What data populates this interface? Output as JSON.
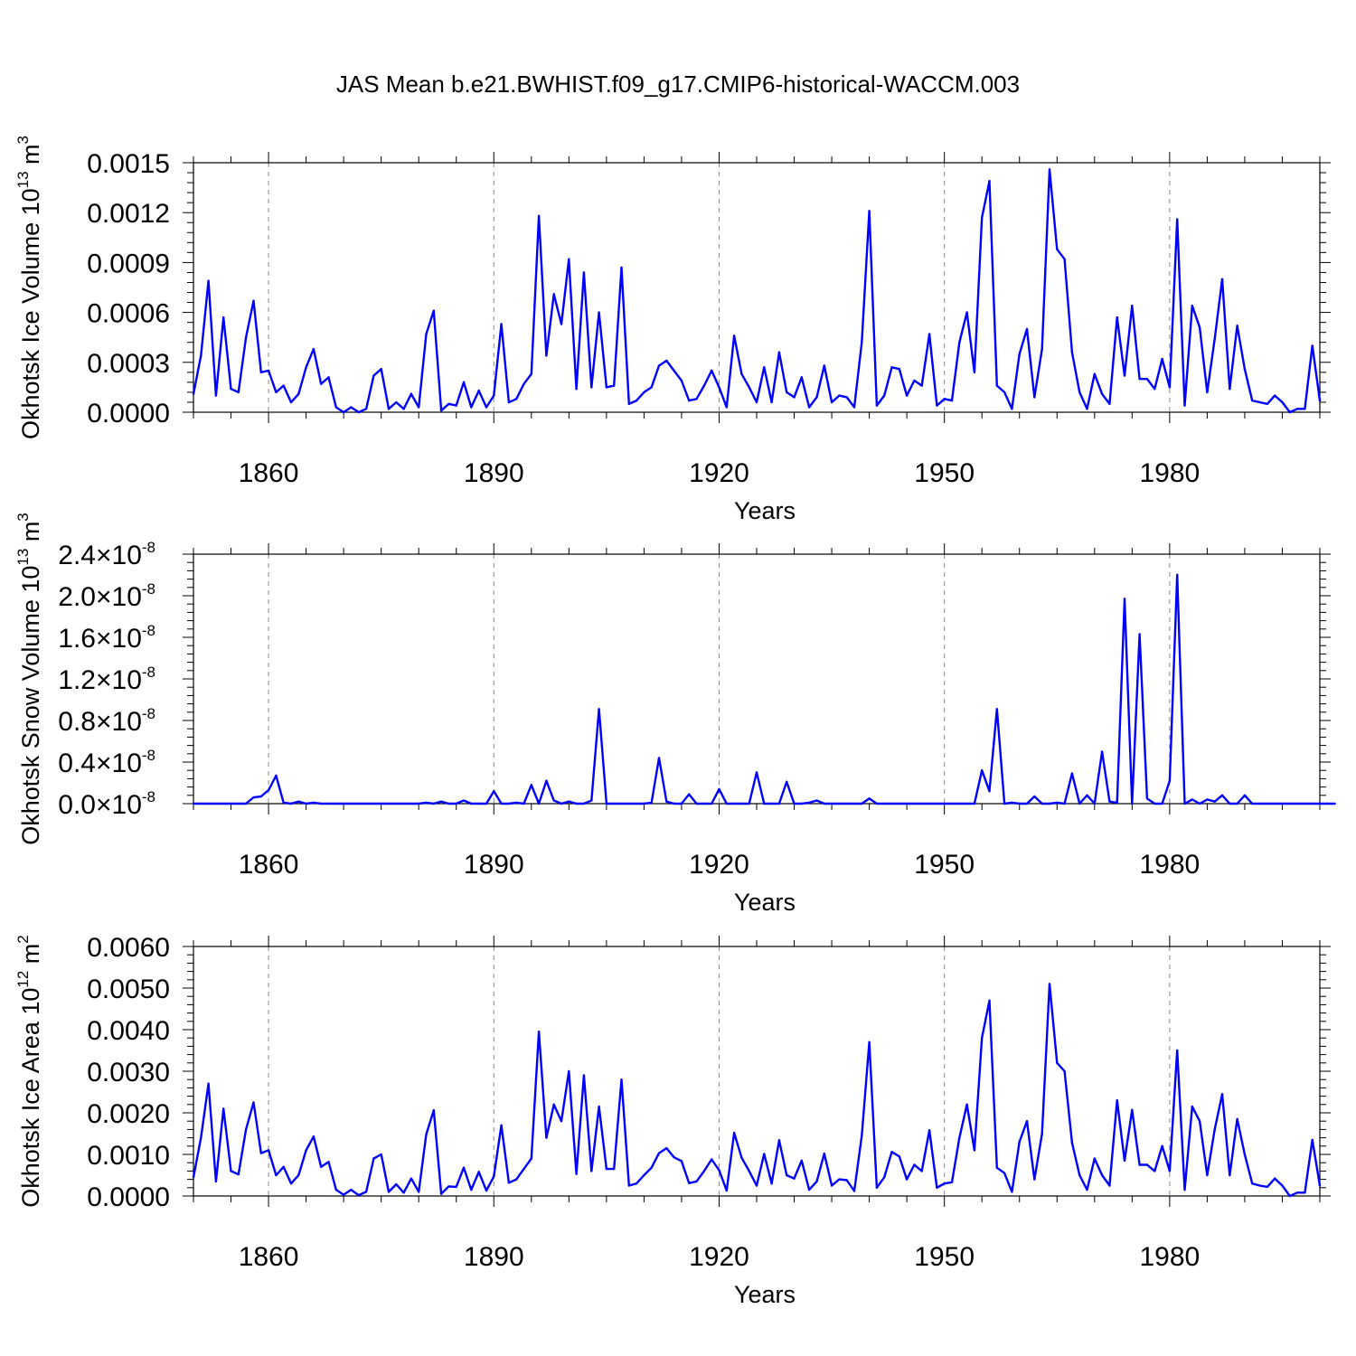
{
  "title": "JAS Mean b.e21.BWHIST.f09_g17.CMIP6-historical-WACCM.003",
  "chart_data": [
    {
      "type": "line",
      "name": "ice-volume",
      "ylabel": "Okhotsk Ice Volume 10",
      "ylabel_exp": "13",
      "ylabel_unit": " m",
      "ylabel_unit_exp": "3",
      "xlabel": "Years",
      "xlim": [
        1850,
        2000
      ],
      "ylim": [
        0,
        0.0015
      ],
      "xticks": [
        1860,
        1890,
        1920,
        1950,
        1980
      ],
      "xtick_labels": [
        "1860",
        "1890",
        "1920",
        "1950",
        "1980"
      ],
      "yticks": [
        0,
        0.0003,
        0.0006,
        0.0009,
        0.0012,
        0.0015
      ],
      "ytick_labels": [
        "0.0000",
        "0.0003",
        "0.0006",
        "0.0009",
        "0.0012",
        "0.0015"
      ],
      "line_color": "#0000ff",
      "x_start": 1850,
      "values": [
        0.00011,
        0.00034,
        0.00079,
        0.0001,
        0.00057,
        0.00014,
        0.00012,
        0.00045,
        0.00067,
        0.00024,
        0.00025,
        0.00012,
        0.00016,
        6e-05,
        0.00011,
        0.00027,
        0.00038,
        0.00017,
        0.00021,
        3e-05,
        0.0,
        3e-05,
        0.0,
        2e-05,
        0.00022,
        0.00026,
        2e-05,
        6e-05,
        2e-05,
        0.00011,
        3e-05,
        0.00047,
        0.00061,
        1e-05,
        5e-05,
        4e-05,
        0.00018,
        3e-05,
        0.00013,
        3e-05,
        0.0001,
        0.00053,
        6e-05,
        8e-05,
        0.00017,
        0.00023,
        0.00118,
        0.00034,
        0.00071,
        0.00053,
        0.00092,
        0.00014,
        0.00084,
        0.00015,
        0.0006,
        0.00015,
        0.00016,
        0.00087,
        5e-05,
        7e-05,
        0.00012,
        0.00015,
        0.00028,
        0.00031,
        0.00025,
        0.00019,
        7e-05,
        8e-05,
        0.00016,
        0.00025,
        0.00015,
        3e-05,
        0.00046,
        0.00023,
        0.00015,
        6e-05,
        0.00027,
        6e-05,
        0.00036,
        0.00012,
        9e-05,
        0.00021,
        3e-05,
        9e-05,
        0.00028,
        6e-05,
        0.0001,
        9e-05,
        3e-05,
        0.00042,
        0.00121,
        4e-05,
        0.0001,
        0.00027,
        0.00026,
        0.0001,
        0.00019,
        0.00016,
        0.00047,
        4e-05,
        8e-05,
        7e-05,
        0.00042,
        0.0006,
        0.00024,
        0.00117,
        0.00139,
        0.00016,
        0.00012,
        2e-05,
        0.00035,
        0.0005,
        9e-05,
        0.00038,
        0.00146,
        0.00098,
        0.00092,
        0.00036,
        0.00012,
        2e-05,
        0.00023,
        0.00011,
        5e-05,
        0.00057,
        0.00022,
        0.00064,
        0.0002,
        0.0002,
        0.00014,
        0.00032,
        0.00015,
        0.00116,
        4e-05,
        0.00064,
        0.00051,
        0.00012,
        0.00044,
        0.0008,
        0.00014,
        0.00052,
        0.00026,
        7e-05,
        6e-05,
        5e-05,
        0.0001,
        6e-05,
        0.0,
        2e-05,
        2e-05,
        0.0004,
        7e-05
      ]
    },
    {
      "type": "line",
      "name": "snow-volume",
      "ylabel": "Okhotsk Snow Volume 10",
      "ylabel_exp": "13",
      "ylabel_unit": " m",
      "ylabel_unit_exp": "3",
      "xlabel": "Years",
      "xlim": [
        1850,
        2000
      ],
      "ylim": [
        0,
        2.4e-08
      ],
      "xticks": [
        1860,
        1890,
        1920,
        1950,
        1980
      ],
      "xtick_labels": [
        "1860",
        "1890",
        "1920",
        "1950",
        "1980"
      ],
      "yticks": [
        0,
        4e-09,
        8e-09,
        1.2e-08,
        1.6e-08,
        2e-08,
        2.4e-08
      ],
      "ytick_mantissas": [
        "0.0",
        "0.4",
        "0.8",
        "1.2",
        "1.6",
        "2.0",
        "2.4"
      ],
      "ytick_times": "×",
      "ytick_base": "10",
      "ytick_exp": "-8",
      "line_color": "#0000ff",
      "x_start": 1850,
      "values": [
        0,
        0,
        0,
        0,
        0,
        0,
        0,
        0,
        6e-10,
        7e-10,
        1.3e-09,
        2.7e-09,
        1e-10,
        0,
        2e-10,
        0,
        1e-10,
        0,
        0,
        0,
        0,
        0,
        0,
        0,
        0,
        0,
        0,
        0,
        0,
        0,
        0,
        1e-10,
        0,
        2e-10,
        0,
        0,
        3e-10,
        0,
        0,
        0,
        1.2e-09,
        0,
        0,
        1e-10,
        0,
        1.8e-09,
        0,
        2.2e-09,
        3e-10,
        0,
        2e-10,
        0,
        0,
        3e-10,
        9.1e-09,
        0,
        0,
        0,
        0,
        0,
        0,
        1e-10,
        4.4e-09,
        2e-10,
        0,
        0,
        9e-10,
        0,
        0,
        0,
        1.4e-09,
        0,
        0,
        0,
        0,
        3e-09,
        0,
        0,
        0,
        2.1e-09,
        0,
        0,
        1e-10,
        3e-10,
        0,
        0,
        0,
        0,
        0,
        0,
        5e-10,
        0,
        0,
        0,
        0,
        0,
        0,
        0,
        0,
        0,
        0,
        0,
        0,
        0,
        0,
        3.2e-09,
        1.2e-09,
        9.1e-09,
        0,
        1e-10,
        0,
        0,
        7e-10,
        0,
        0,
        1e-10,
        0,
        2.9e-09,
        0,
        8e-10,
        0,
        5e-09,
        2e-10,
        1e-10,
        1.97e-08,
        0,
        1.63e-08,
        5e-10,
        0,
        0,
        2.2e-09,
        2.2e-08,
        0,
        4e-10,
        0,
        4e-10,
        2e-10,
        8e-10,
        0,
        0,
        8e-10,
        0,
        0,
        0,
        0,
        0,
        0,
        0,
        0,
        0,
        0,
        0,
        0
      ]
    },
    {
      "type": "line",
      "name": "ice-area",
      "ylabel": "Okhotsk Ice Area 10",
      "ylabel_exp": "12",
      "ylabel_unit": " m",
      "ylabel_unit_exp": "2",
      "xlabel": "Years",
      "xlim": [
        1850,
        2000
      ],
      "ylim": [
        0,
        0.006
      ],
      "xticks": [
        1860,
        1890,
        1920,
        1950,
        1980
      ],
      "xtick_labels": [
        "1860",
        "1890",
        "1920",
        "1950",
        "1980"
      ],
      "yticks": [
        0,
        0.001,
        0.002,
        0.003,
        0.004,
        0.005,
        0.006
      ],
      "ytick_labels": [
        "0.0000",
        "0.0010",
        "0.0020",
        "0.0030",
        "0.0040",
        "0.0050",
        "0.0060"
      ],
      "line_color": "#0000ff",
      "x_start": 1850,
      "values": [
        0.00045,
        0.0014,
        0.0027,
        0.00035,
        0.0021,
        0.0006,
        0.00052,
        0.0016,
        0.00225,
        0.00103,
        0.0011,
        0.0005,
        0.0007,
        0.0003,
        0.0005,
        0.0011,
        0.00143,
        0.0007,
        0.00082,
        0.00015,
        3e-05,
        0.00015,
        2e-05,
        0.0001,
        0.0009,
        0.001,
        0.0001,
        0.00028,
        8e-05,
        0.00042,
        0.0001,
        0.00148,
        0.00206,
        5e-05,
        0.00023,
        0.00022,
        0.00068,
        0.00015,
        0.00058,
        0.00013,
        0.00047,
        0.0017,
        0.00032,
        0.0004,
        0.00065,
        0.0009,
        0.00395,
        0.0014,
        0.0022,
        0.0018,
        0.003,
        0.00053,
        0.0029,
        0.0006,
        0.00215,
        0.00065,
        0.00065,
        0.0028,
        0.00025,
        0.0003,
        0.0005,
        0.00068,
        0.00103,
        0.00115,
        0.00093,
        0.00084,
        0.00031,
        0.00035,
        0.0006,
        0.00088,
        0.00062,
        0.00013,
        0.00152,
        0.00092,
        0.0006,
        0.00025,
        0.00101,
        0.0003,
        0.00134,
        0.0005,
        0.00042,
        0.00085,
        0.00015,
        0.00035,
        0.00102,
        0.00025,
        0.0004,
        0.00038,
        0.00012,
        0.00145,
        0.0037,
        0.0002,
        0.00045,
        0.00106,
        0.00095,
        0.0004,
        0.00075,
        0.0006,
        0.00158,
        0.0002,
        0.0003,
        0.00033,
        0.0014,
        0.0022,
        0.0011,
        0.0038,
        0.0047,
        0.00068,
        0.00055,
        0.0001,
        0.0013,
        0.0018,
        0.0004,
        0.0015,
        0.0051,
        0.0032,
        0.003,
        0.00128,
        0.0005,
        0.00015,
        0.0009,
        0.0005,
        0.00025,
        0.0023,
        0.00085,
        0.00207,
        0.00075,
        0.00075,
        0.0006,
        0.0012,
        0.0006,
        0.0035,
        0.00015,
        0.00215,
        0.0018,
        0.0005,
        0.0016,
        0.00245,
        0.0005,
        0.00185,
        0.001,
        0.0003,
        0.00025,
        0.00022,
        0.00042,
        0.00025,
        0.0,
        8e-05,
        8e-05,
        0.00135,
        0.00025
      ]
    }
  ]
}
